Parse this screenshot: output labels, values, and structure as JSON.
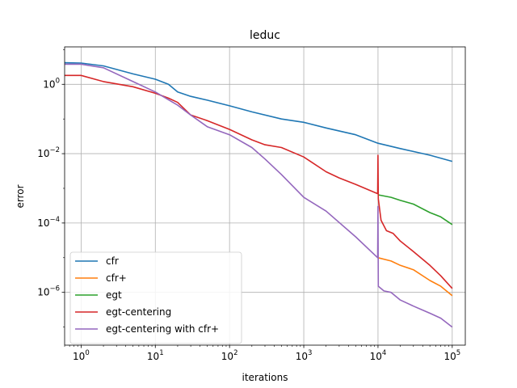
{
  "chart_data": {
    "type": "line",
    "title": "leduc",
    "xlabel": "iterations",
    "ylabel": "error",
    "xscale": "log",
    "yscale": "log",
    "xlim": [
      0.6,
      150000
    ],
    "ylim": [
      3e-08,
      12
    ],
    "grid": true,
    "legend_position": "lower-left",
    "x_ticks": [
      {
        "value": 1,
        "base": "10",
        "exp": "0"
      },
      {
        "value": 10,
        "base": "10",
        "exp": "1"
      },
      {
        "value": 100,
        "base": "10",
        "exp": "2"
      },
      {
        "value": 1000,
        "base": "10",
        "exp": "3"
      },
      {
        "value": 10000,
        "base": "10",
        "exp": "4"
      },
      {
        "value": 100000,
        "base": "10",
        "exp": "5"
      }
    ],
    "y_ticks": [
      {
        "value": 1e-06,
        "base": "10",
        "exp": "−6"
      },
      {
        "value": 0.0001,
        "base": "10",
        "exp": "−4"
      },
      {
        "value": 0.01,
        "base": "10",
        "exp": "−2"
      },
      {
        "value": 1,
        "base": "10",
        "exp": "0"
      }
    ],
    "series": [
      {
        "name": "cfr",
        "color": "#1f77b4",
        "points": [
          [
            0.6,
            4.2
          ],
          [
            1,
            4.1
          ],
          [
            2,
            3.4
          ],
          [
            5,
            2.0
          ],
          [
            10,
            1.4
          ],
          [
            15,
            1.0
          ],
          [
            20,
            0.6
          ],
          [
            30,
            0.45
          ],
          [
            50,
            0.35
          ],
          [
            100,
            0.24
          ],
          [
            200,
            0.16
          ],
          [
            500,
            0.1
          ],
          [
            1000,
            0.08
          ],
          [
            2000,
            0.055
          ],
          [
            5000,
            0.035
          ],
          [
            10000,
            0.02
          ],
          [
            20000,
            0.014
          ],
          [
            50000,
            0.009
          ],
          [
            100000,
            0.006
          ]
        ]
      },
      {
        "name": "cfr+",
        "color": "#ff7f0e",
        "points": [
          [
            10000,
            1e-05
          ],
          [
            15000,
            8e-06
          ],
          [
            20000,
            6e-06
          ],
          [
            30000,
            4.5e-06
          ],
          [
            50000,
            2.2e-06
          ],
          [
            70000,
            1.5e-06
          ],
          [
            100000,
            8e-07
          ]
        ]
      },
      {
        "name": "egt",
        "color": "#2ca02c",
        "points": [
          [
            10000,
            0.00065
          ],
          [
            15000,
            0.00055
          ],
          [
            20000,
            0.00045
          ],
          [
            30000,
            0.00035
          ],
          [
            50000,
            0.0002
          ],
          [
            70000,
            0.00015
          ],
          [
            100000,
            9e-05
          ]
        ]
      },
      {
        "name": "egt-centering",
        "color": "#d62728",
        "points": [
          [
            0.6,
            1.8
          ],
          [
            1,
            1.8
          ],
          [
            2,
            1.2
          ],
          [
            5,
            0.85
          ],
          [
            10,
            0.55
          ],
          [
            15,
            0.4
          ],
          [
            20,
            0.3
          ],
          [
            30,
            0.13
          ],
          [
            50,
            0.09
          ],
          [
            100,
            0.05
          ],
          [
            200,
            0.025
          ],
          [
            300,
            0.018
          ],
          [
            500,
            0.015
          ],
          [
            1000,
            0.008
          ],
          [
            2000,
            0.003
          ],
          [
            3000,
            0.002
          ],
          [
            5000,
            0.0013
          ],
          [
            9900,
            0.0007
          ],
          [
            10000,
            0.009
          ],
          [
            10100,
            0.0005
          ],
          [
            11000,
            0.00012
          ],
          [
            13000,
            6e-05
          ],
          [
            16000,
            5e-05
          ],
          [
            20000,
            3e-05
          ],
          [
            30000,
            1.5e-05
          ],
          [
            50000,
            6e-06
          ],
          [
            70000,
            3e-06
          ],
          [
            100000,
            1.3e-06
          ]
        ]
      },
      {
        "name": "egt-centering with cfr+",
        "color": "#9467bd",
        "points": [
          [
            0.6,
            3.8
          ],
          [
            1,
            3.8
          ],
          [
            2,
            3.0
          ],
          [
            5,
            1.2
          ],
          [
            10,
            0.6
          ],
          [
            20,
            0.25
          ],
          [
            30,
            0.13
          ],
          [
            50,
            0.06
          ],
          [
            100,
            0.035
          ],
          [
            200,
            0.015
          ],
          [
            300,
            0.007
          ],
          [
            500,
            0.0025
          ],
          [
            1000,
            0.00055
          ],
          [
            2000,
            0.00022
          ],
          [
            5000,
            4e-05
          ],
          [
            9900,
            1e-05
          ],
          [
            10000,
            0.0003
          ],
          [
            10100,
            1.5e-06
          ],
          [
            12000,
            1.1e-06
          ],
          [
            15000,
            1e-06
          ],
          [
            20000,
            6e-07
          ],
          [
            30000,
            4e-07
          ],
          [
            50000,
            2.5e-07
          ],
          [
            70000,
            1.8e-07
          ],
          [
            100000,
            1e-07
          ]
        ]
      }
    ]
  }
}
